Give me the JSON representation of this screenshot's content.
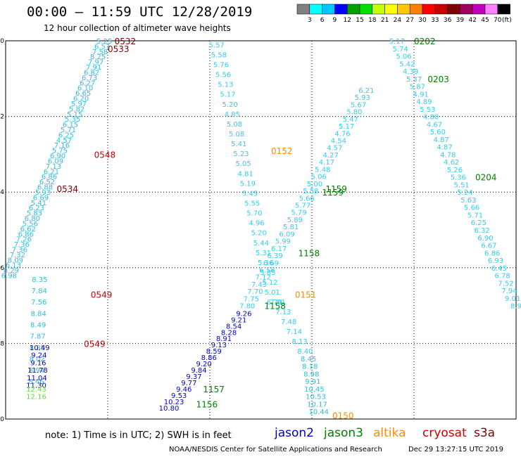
{
  "header": {
    "title": "00:00 – 11:59 UTC 12/28/2019",
    "subtitle": "12 hour collection of altimeter wave heights"
  },
  "color_scale": {
    "unit": "(ft)",
    "colors": [
      "#808080",
      "#00ffff",
      "#00c8ff",
      "#0000ff",
      "#00a000",
      "#00e000",
      "#c8ff00",
      "#ffff00",
      "#ffc800",
      "#ff8000",
      "#ff0000",
      "#c80000",
      "#800000",
      "#a00060",
      "#c000c0",
      "#ff80ff",
      "#000000"
    ],
    "labels": [
      "3",
      "6",
      "9",
      "12",
      "15",
      "18",
      "21",
      "24",
      "27",
      "30",
      "33",
      "36",
      "39",
      "42",
      "45",
      "70"
    ]
  },
  "footer": {
    "note": "note:  1) Time is in UTC;  2) SWH is in feet",
    "satellites": [
      {
        "name": "jason2",
        "color": "#0000cc"
      },
      {
        "name": "jason3",
        "color": "#008000"
      },
      {
        "name": "altika",
        "color": "#ff8c00"
      },
      {
        "name": "cryosat",
        "color": "#cc0000"
      },
      {
        "name": "s3a",
        "color": "#800000"
      }
    ],
    "credit": "NOAA/NESDIS Center for Satellite Applications and Research",
    "timestamp": "Dec 29 13:27:15 UTC 2019"
  },
  "chart_data": {
    "type": "scatter",
    "xlim": [
      60,
      75
    ],
    "ylim": [
      -40,
      -30
    ],
    "x_ticks": [
      "60",
      "63",
      "66",
      "69",
      "72",
      "75"
    ],
    "y_ticks": [
      "-30",
      "-32",
      "-34",
      "-36",
      "-38",
      "-40"
    ],
    "grid": true,
    "tracks": [
      {
        "color": "#33bbdd",
        "start": [
          62.9,
          -30.0
        ],
        "end": [
          60.1,
          -36.2
        ],
        "values": [
          "5.25",
          "6.57",
          "7.58",
          "8.25",
          "7.97",
          "7.91",
          "6.82",
          "6.73",
          "6.27",
          "6.10",
          "6.65",
          "6.20",
          "5.97",
          "5.82",
          "5.15",
          "5.35",
          "6.15",
          "5.71",
          "6.25",
          "4.57",
          "7.16",
          "5.75",
          "6.90",
          "6.09",
          "7.13",
          "6.21",
          "6.86",
          "6.52",
          "6.88",
          "5.93",
          "6.69",
          "5.41",
          "6.23",
          "5.83",
          "6.80",
          "5.56",
          "6.62",
          "6.86",
          "7.26",
          "7.36",
          "7.36",
          "7.32",
          "8.09",
          "6.13",
          "8.29",
          "6.98"
        ]
      },
      {
        "color": "#33bbdd",
        "start": [
          61.0,
          -36.3
        ],
        "end": [
          60.9,
          -39.0
        ],
        "values": [
          "8.35",
          "7.84",
          "7.56",
          "8.84",
          "8.49",
          "7.87",
          "8.85",
          "8.02",
          "8.94",
          "8.46"
        ]
      },
      {
        "color": "#0000cc",
        "start": [
          61.0,
          -38.1
        ],
        "end": [
          60.9,
          -39.1
        ],
        "values": [
          "10.49",
          "9.24",
          "9.16",
          "11.78",
          "11.04",
          "11.30"
        ]
      },
      {
        "color": "#66dd44",
        "start": [
          60.9,
          -39.2
        ],
        "end": [
          60.9,
          -39.4
        ],
        "values": [
          "12.43",
          "12.16"
        ]
      },
      {
        "color": "#33ccee",
        "start": [
          66.2,
          -30.1
        ],
        "end": [
          67.9,
          -36.9
        ],
        "values": [
          "5.57",
          "5.58",
          "5.76",
          "5.56",
          "5.13",
          "5.17",
          "5.20",
          "4.85",
          "5.08",
          "5.08",
          "5.41",
          "5.23",
          "5.05",
          "4.81",
          "5.19",
          "5.45",
          "5.55",
          "5.70",
          "4.96",
          "5.20",
          "5.44",
          "5.31",
          "5.36",
          "5.85",
          "5.12",
          "5.01",
          "6.79"
        ]
      },
      {
        "color": "#33ccee",
        "start": [
          68.0,
          -36.9
        ],
        "end": [
          68.8,
          -38.2
        ],
        "values": [
          "7.01",
          "7.13",
          "7.48",
          "7.14",
          "8.13",
          "8.40"
        ]
      },
      {
        "color": "#33bbdd",
        "start": [
          68.9,
          -38.4
        ],
        "end": [
          69.2,
          -39.8
        ],
        "values": [
          "8.45",
          "8.18",
          "8.98",
          "9.91",
          "10.45",
          "10.53",
          "10.17",
          "10.44"
        ]
      },
      {
        "color": "#33ccee",
        "start": [
          70.6,
          -31.3
        ],
        "end": [
          67.1,
          -37.0
        ],
        "values": [
          "6.21",
          "5.93",
          "5.67",
          "5.80",
          "5.47",
          "5.17",
          "4.76",
          "4.54",
          "4.57",
          "4.27",
          "4.17",
          "5.48",
          "5.06",
          "5.00",
          "5.58",
          "5.66",
          "5.77",
          "5.79",
          "5.89",
          "5.81",
          "6.09",
          "5.99",
          "6.17",
          "6.39",
          "6.69",
          "6.58",
          "7.12",
          "7.43",
          "7.70",
          "7.75",
          "7.80"
        ]
      },
      {
        "color": "#0000cc",
        "start": [
          67.0,
          -37.2
        ],
        "end": [
          64.8,
          -39.7
        ],
        "values": [
          "9.26",
          "9.21",
          "8.54",
          "8.28",
          "8.91",
          "9.13",
          "8.59",
          "8.86",
          "9.20",
          "9.84",
          "9.37",
          "9.77",
          "9.46",
          "9.53",
          "10.23",
          "10.80"
        ]
      },
      {
        "color": "#33ccee",
        "start": [
          71.5,
          -30.0
        ],
        "end": [
          75.0,
          -37.0
        ],
        "values": [
          "5.17",
          "5.74",
          "5.06",
          "5.42",
          "4.39",
          "5.37",
          "5.87",
          "4.91",
          "4.89",
          "5.53",
          "4.80",
          "4.67",
          "5.60",
          "4.87",
          "4.87",
          "4.78",
          "4.62",
          "5.26",
          "5.36",
          "5.51",
          "5.24",
          "5.63",
          "5.66",
          "5.71",
          "6.25",
          "6.32",
          "6.90",
          "6.67",
          "6.86",
          "6.93",
          "6.45",
          "6.78",
          "7.52",
          "7.94",
          "9.01",
          "8.9"
        ]
      }
    ],
    "time_labels": [
      {
        "text": "0532",
        "x": 63.2,
        "y": -30.0,
        "color": "#800000"
      },
      {
        "text": "0533",
        "x": 63.0,
        "y": -30.2,
        "color": "#800000"
      },
      {
        "text": "0548",
        "x": 62.6,
        "y": -33.0,
        "color": "#cc0000"
      },
      {
        "text": "0534",
        "x": 61.5,
        "y": -33.9,
        "color": "#800000"
      },
      {
        "text": "0549",
        "x": 62.5,
        "y": -36.7,
        "color": "#cc0000"
      },
      {
        "text": "0549",
        "x": 62.3,
        "y": -38.0,
        "color": "#cc0000"
      },
      {
        "text": "0152",
        "x": 67.8,
        "y": -32.9,
        "color": "#ff8c00"
      },
      {
        "text": "0151",
        "x": 68.5,
        "y": -36.7,
        "color": "#ff8c00"
      },
      {
        "text": "0150",
        "x": 69.6,
        "y": -39.9,
        "color": "#ff8c00"
      },
      {
        "text": "1159",
        "x": 69.4,
        "y": -33.9,
        "color": "#008000"
      },
      {
        "text": "1159",
        "x": 69.3,
        "y": -34.0,
        "color": "#008000"
      },
      {
        "text": "1158",
        "x": 68.6,
        "y": -35.6,
        "color": "#008000"
      },
      {
        "text": "1158",
        "x": 67.6,
        "y": -37.0,
        "color": "#008000"
      },
      {
        "text": "1157",
        "x": 65.8,
        "y": -39.2,
        "color": "#008000"
      },
      {
        "text": "1156",
        "x": 65.6,
        "y": -39.6,
        "color": "#008000"
      },
      {
        "text": "0202",
        "x": 72.0,
        "y": -30.0,
        "color": "#008000"
      },
      {
        "text": "0203",
        "x": 72.4,
        "y": -31.0,
        "color": "#008000"
      },
      {
        "text": "0204",
        "x": 73.8,
        "y": -33.6,
        "color": "#008000"
      }
    ]
  }
}
